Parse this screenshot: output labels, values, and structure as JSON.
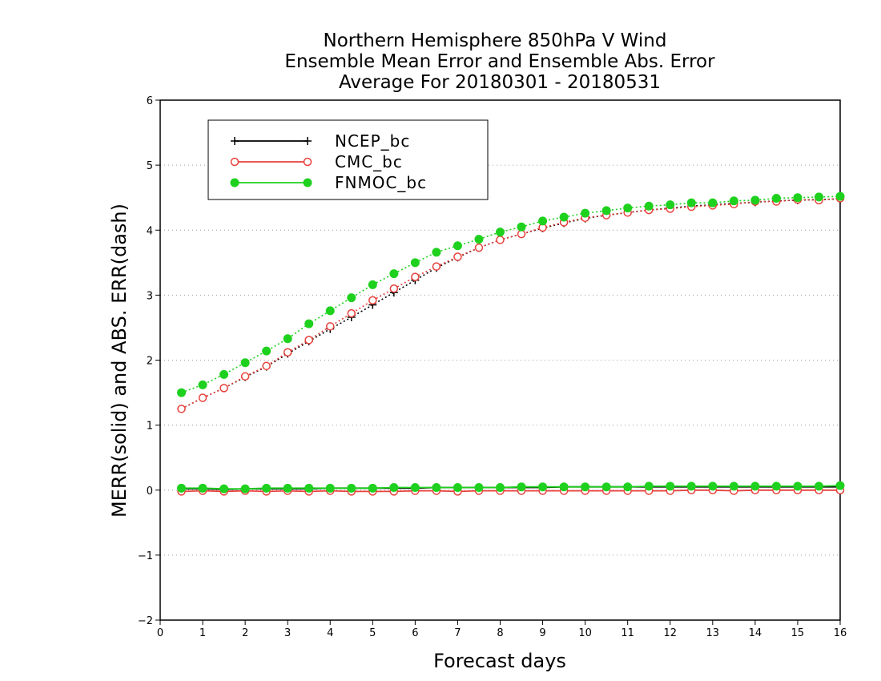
{
  "chart_data": {
    "type": "line",
    "title_lines": [
      "Northern Hemisphere 850hPa V Wind",
      "Ensemble Mean Error and Ensemble Abs. Error",
      "Average For 20180301 - 20180531"
    ],
    "xlabel": "Forecast days",
    "ylabel": "MERR(solid) and ABS. ERR(dash)",
    "xlim": [
      0,
      16
    ],
    "ylim": [
      -2,
      6
    ],
    "xticks": [
      "0",
      "1",
      "2",
      "3",
      "4",
      "5",
      "6",
      "7",
      "8",
      "9",
      "10",
      "11",
      "12",
      "13",
      "14",
      "15",
      "16"
    ],
    "yticks": [
      "−2",
      "−1",
      "0",
      "1",
      "2",
      "3",
      "4",
      "5",
      "6"
    ],
    "grid": "horizontal dotted",
    "legend_position": "top-left",
    "x": [
      0.5,
      1,
      1.5,
      2,
      2.5,
      3,
      3.5,
      4,
      4.5,
      5,
      5.5,
      6,
      6.5,
      7,
      7.5,
      8,
      8.5,
      9,
      9.5,
      10,
      10.5,
      11,
      11.5,
      12,
      12.5,
      13,
      13.5,
      14,
      14.5,
      15,
      15.5,
      16
    ],
    "series": [
      {
        "name": "NCEP_bc",
        "color": "#000000",
        "marker": "plus",
        "merr": [
          0.02,
          0.02,
          0.01,
          0.02,
          0.02,
          0.02,
          0.02,
          0.03,
          0.03,
          0.03,
          0.03,
          0.03,
          0.04,
          0.04,
          0.04,
          0.04,
          0.04,
          0.04,
          0.05,
          0.05,
          0.05,
          0.05,
          0.05,
          0.05,
          0.05,
          0.05,
          0.05,
          0.05,
          0.05,
          0.05,
          0.05,
          0.05
        ],
        "abs_err": [
          1.25,
          1.42,
          1.57,
          1.74,
          1.9,
          2.1,
          2.29,
          2.48,
          2.66,
          2.85,
          3.04,
          3.23,
          3.42,
          3.58,
          3.73,
          3.85,
          3.94,
          4.03,
          4.11,
          4.18,
          4.23,
          4.27,
          4.31,
          4.34,
          4.37,
          4.39,
          4.41,
          4.43,
          4.45,
          4.46,
          4.47,
          4.48
        ]
      },
      {
        "name": "CMC_bc",
        "color": "#e8413c",
        "marker": "open-circle",
        "merr": [
          -0.02,
          -0.01,
          -0.02,
          -0.01,
          -0.02,
          -0.01,
          -0.02,
          -0.01,
          -0.02,
          -0.02,
          -0.02,
          -0.01,
          -0.01,
          -0.02,
          -0.01,
          -0.01,
          -0.01,
          -0.01,
          -0.01,
          -0.01,
          -0.01,
          -0.01,
          -0.01,
          -0.01,
          0.0,
          0.0,
          -0.01,
          0.0,
          0.0,
          0.0,
          0.0,
          0.0
        ],
        "abs_err": [
          1.25,
          1.42,
          1.57,
          1.75,
          1.91,
          2.12,
          2.31,
          2.52,
          2.72,
          2.92,
          3.1,
          3.28,
          3.44,
          3.59,
          3.73,
          3.85,
          3.94,
          4.04,
          4.12,
          4.19,
          4.23,
          4.27,
          4.31,
          4.33,
          4.36,
          4.38,
          4.4,
          4.44,
          4.44,
          4.47,
          4.46,
          4.49
        ]
      },
      {
        "name": "FNMOC_bc",
        "color": "#1ed11e",
        "marker": "filled-circle",
        "merr": [
          0.03,
          0.03,
          0.02,
          0.02,
          0.03,
          0.03,
          0.03,
          0.03,
          0.03,
          0.03,
          0.04,
          0.04,
          0.04,
          0.04,
          0.04,
          0.04,
          0.05,
          0.05,
          0.05,
          0.05,
          0.05,
          0.05,
          0.06,
          0.06,
          0.06,
          0.06,
          0.06,
          0.06,
          0.06,
          0.06,
          0.06,
          0.07
        ],
        "abs_err": [
          1.5,
          1.62,
          1.78,
          1.96,
          2.14,
          2.33,
          2.56,
          2.76,
          2.96,
          3.16,
          3.33,
          3.5,
          3.66,
          3.76,
          3.86,
          3.97,
          4.05,
          4.14,
          4.2,
          4.26,
          4.3,
          4.34,
          4.37,
          4.39,
          4.42,
          4.42,
          4.45,
          4.46,
          4.49,
          4.5,
          4.51,
          4.52
        ]
      }
    ]
  }
}
